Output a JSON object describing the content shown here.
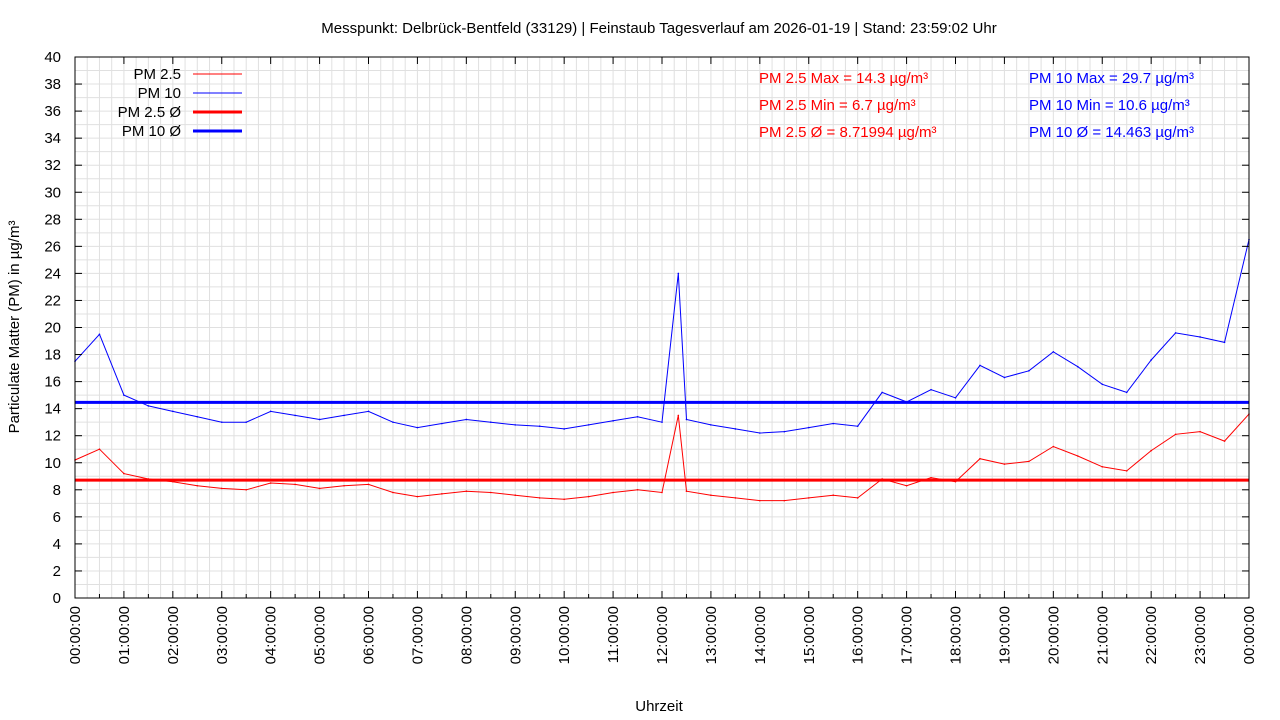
{
  "chart_data": {
    "type": "line",
    "title": "Messpunkt: Delbrück-Bentfeld (33129) | Feinstaub Tagesverlauf am 2026-01-19 | Stand: 23:59:02 Uhr",
    "xlabel": "Uhrzeit",
    "ylabel": "Particulate Matter (PM) in µg/m³",
    "ylim": [
      0,
      40
    ],
    "xlim": [
      "00:00:00",
      "24:00:00"
    ],
    "grid": true,
    "legend_position": "top-left",
    "x_tick_labels": [
      "00:00:00",
      "01:00:00",
      "02:00:00",
      "03:00:00",
      "04:00:00",
      "05:00:00",
      "06:00:00",
      "07:00:00",
      "08:00:00",
      "09:00:00",
      "10:00:00",
      "11:00:00",
      "12:00:00",
      "13:00:00",
      "14:00:00",
      "15:00:00",
      "16:00:00",
      "17:00:00",
      "18:00:00",
      "19:00:00",
      "20:00:00",
      "21:00:00",
      "22:00:00",
      "23:00:00",
      "00:00:00"
    ],
    "y_tick_labels": [
      "0",
      "2",
      "4",
      "6",
      "8",
      "10",
      "12",
      "14",
      "16",
      "18",
      "20",
      "22",
      "24",
      "26",
      "28",
      "30",
      "32",
      "34",
      "36",
      "38",
      "40"
    ],
    "x": [
      "00:00",
      "00:30",
      "01:00",
      "01:30",
      "02:00",
      "02:30",
      "03:00",
      "03:30",
      "04:00",
      "04:30",
      "05:00",
      "05:30",
      "06:00",
      "06:30",
      "07:00",
      "07:30",
      "08:00",
      "08:30",
      "09:00",
      "09:30",
      "10:00",
      "10:30",
      "11:00",
      "11:30",
      "12:00",
      "12:20",
      "12:30",
      "13:00",
      "13:30",
      "14:00",
      "14:30",
      "15:00",
      "15:30",
      "16:00",
      "16:30",
      "17:00",
      "17:30",
      "18:00",
      "18:30",
      "19:00",
      "19:30",
      "20:00",
      "20:30",
      "21:00",
      "21:30",
      "22:00",
      "22:30",
      "23:00",
      "23:30",
      "24:00"
    ],
    "series": [
      {
        "name": "PM 2.5",
        "color": "#ff0000",
        "values": [
          10.2,
          11.0,
          9.2,
          8.8,
          8.6,
          8.3,
          8.1,
          8.0,
          8.5,
          8.4,
          8.1,
          8.3,
          8.4,
          7.8,
          7.5,
          7.7,
          7.9,
          7.8,
          7.6,
          7.4,
          7.3,
          7.5,
          7.8,
          8.0,
          7.8,
          13.5,
          7.9,
          7.6,
          7.4,
          7.2,
          7.2,
          7.4,
          7.6,
          7.4,
          8.8,
          8.3,
          8.9,
          8.6,
          10.3,
          9.9,
          10.1,
          11.2,
          10.5,
          9.7,
          9.4,
          10.9,
          12.1,
          12.3,
          11.6,
          13.6
        ]
      },
      {
        "name": "PM 10",
        "color": "#0000ff",
        "values": [
          17.5,
          19.5,
          15.0,
          14.2,
          13.8,
          13.4,
          13.0,
          13.0,
          13.8,
          13.5,
          13.2,
          13.5,
          13.8,
          13.0,
          12.6,
          12.9,
          13.2,
          13.0,
          12.8,
          12.7,
          12.5,
          12.8,
          13.1,
          13.4,
          13.0,
          24.0,
          13.2,
          12.8,
          12.5,
          12.2,
          12.3,
          12.6,
          12.9,
          12.7,
          15.2,
          14.5,
          15.4,
          14.8,
          17.2,
          16.3,
          16.8,
          18.2,
          17.1,
          15.8,
          15.2,
          17.6,
          19.6,
          19.3,
          18.9,
          26.5
        ]
      },
      {
        "name": "PM 2.5 Ø",
        "color": "#ff0000",
        "constant": 8.71994
      },
      {
        "name": "PM 10 Ø",
        "color": "#0000ff",
        "constant": 14.463
      }
    ],
    "annotations": {
      "pm25": [
        "PM 2.5 Max = 14.3 µg/m³",
        "PM 2.5 Min = 6.7 µg/m³",
        "PM 2.5 Ø = 8.71994 µg/m³"
      ],
      "pm10": [
        "PM 10 Max = 29.7 µg/m³",
        "PM 10 Min = 10.6 µg/m³",
        "PM 10 Ø = 14.463 µg/m³"
      ]
    }
  }
}
